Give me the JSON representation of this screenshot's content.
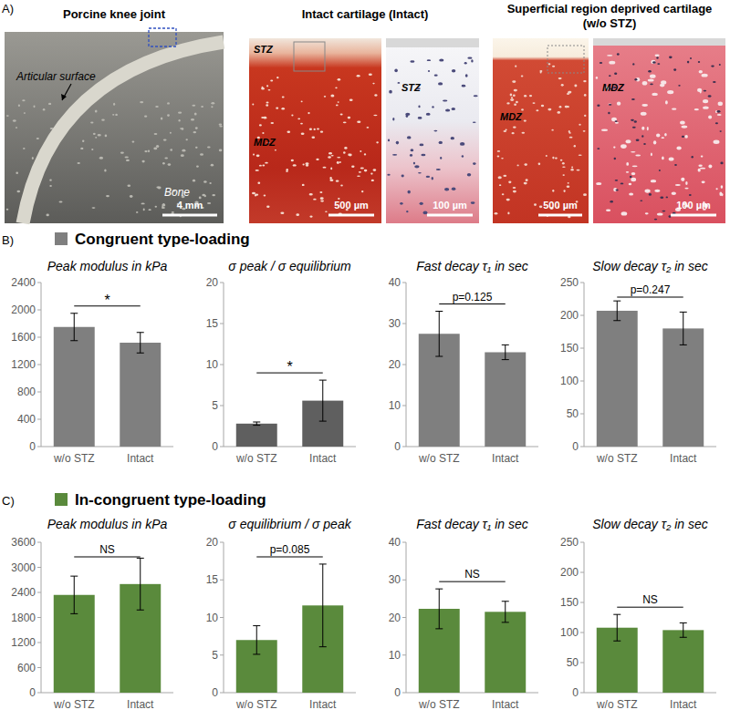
{
  "panel_a": {
    "label": "A)",
    "joint": {
      "title": "Porcine knee joint",
      "surface_label": "Articular surface",
      "bone_label": "Bone",
      "scale_bar": "4 mm"
    },
    "intact": {
      "title": "Intact cartilage (Intact)",
      "zone_labels": [
        "STZ",
        "MDZ"
      ],
      "zoom_zone_label": "STZ",
      "scale_bar": "500 µm",
      "zoom_scale_bar": "100 µm"
    },
    "without_stz": {
      "title": [
        "Superficial region deprived cartilage",
        "(w/o STZ)"
      ],
      "zone_label": "MDZ",
      "zoom_zone_label": "MDZ",
      "scale_bar": "500 µm",
      "zoom_scale_bar": "100 µm"
    }
  },
  "panel_b": {
    "label": "B)",
    "title": "Congruent type-loading"
  },
  "panel_c": {
    "label": "C)",
    "title": "In-congruent type-loading"
  },
  "chart_data": [
    {
      "type": "bar",
      "title": "Peak modulus in kPa",
      "categories": [
        "w/o STZ",
        "Intact"
      ],
      "values": [
        1750,
        1520
      ],
      "errors": [
        200,
        150
      ],
      "color": "#7f7f7f",
      "ylim": [
        0,
        2400
      ],
      "yticks": [
        0,
        400,
        800,
        1200,
        1600,
        2000,
        2400
      ],
      "annotation": "*"
    },
    {
      "type": "bar",
      "title": "σ peak / σ equilibrium",
      "categories": [
        "w/o STZ",
        "Intact"
      ],
      "values": [
        2.8,
        5.6
      ],
      "errors": [
        0.2,
        2.5
      ],
      "color": "#5f5f5f",
      "ylim": [
        0,
        20
      ],
      "yticks": [
        0,
        5,
        10,
        15,
        20
      ],
      "annotation": "*"
    },
    {
      "type": "bar",
      "title": "Fast decay τ₁ in sec",
      "categories": [
        "w/o STZ",
        "Intact"
      ],
      "values": [
        27.5,
        23
      ],
      "errors": [
        5.5,
        1.8
      ],
      "color": "#7f7f7f",
      "ylim": [
        0,
        40
      ],
      "yticks": [
        0,
        10,
        20,
        30,
        40
      ],
      "annotation": "p=0.125"
    },
    {
      "type": "bar",
      "title": "Slow decay τ₂ in sec",
      "categories": [
        "w/o STZ",
        "Intact"
      ],
      "values": [
        207,
        180
      ],
      "errors": [
        15,
        25
      ],
      "color": "#7f7f7f",
      "ylim": [
        0,
        250
      ],
      "yticks": [
        0,
        50,
        100,
        150,
        200,
        250
      ],
      "annotation": "p=0.247"
    },
    {
      "type": "bar",
      "title": "Peak modulus in kPa",
      "categories": [
        "w/o STZ",
        "Intact"
      ],
      "values": [
        2340,
        2600
      ],
      "errors": [
        450,
        620
      ],
      "color": "#5a8a3c",
      "ylim": [
        0,
        3600
      ],
      "yticks": [
        0,
        600,
        1200,
        1800,
        2400,
        3000,
        3600
      ],
      "annotation": "NS"
    },
    {
      "type": "bar",
      "title": "σ equilibrium / σ peak",
      "categories": [
        "w/o STZ",
        "Intact"
      ],
      "values": [
        7.0,
        11.6
      ],
      "errors": [
        1.9,
        5.5
      ],
      "color": "#5a8a3c",
      "ylim": [
        0,
        20
      ],
      "yticks": [
        0,
        5,
        10,
        15,
        20
      ],
      "annotation": "p=0.085"
    },
    {
      "type": "bar",
      "title": "Fast decay τ₁ in sec",
      "categories": [
        "w/o STZ",
        "Intact"
      ],
      "values": [
        22.3,
        21.5
      ],
      "errors": [
        5.3,
        2.8
      ],
      "color": "#5a8a3c",
      "ylim": [
        0,
        40
      ],
      "yticks": [
        0,
        10,
        20,
        30,
        40
      ],
      "annotation": "NS"
    },
    {
      "type": "bar",
      "title": "Slow decay τ₂ in sec",
      "categories": [
        "w/o STZ",
        "Intact"
      ],
      "values": [
        108,
        104
      ],
      "errors": [
        22,
        12
      ],
      "color": "#5a8a3c",
      "ylim": [
        0,
        250
      ],
      "yticks": [
        0,
        50,
        100,
        150,
        200,
        250
      ],
      "annotation": "NS"
    }
  ]
}
